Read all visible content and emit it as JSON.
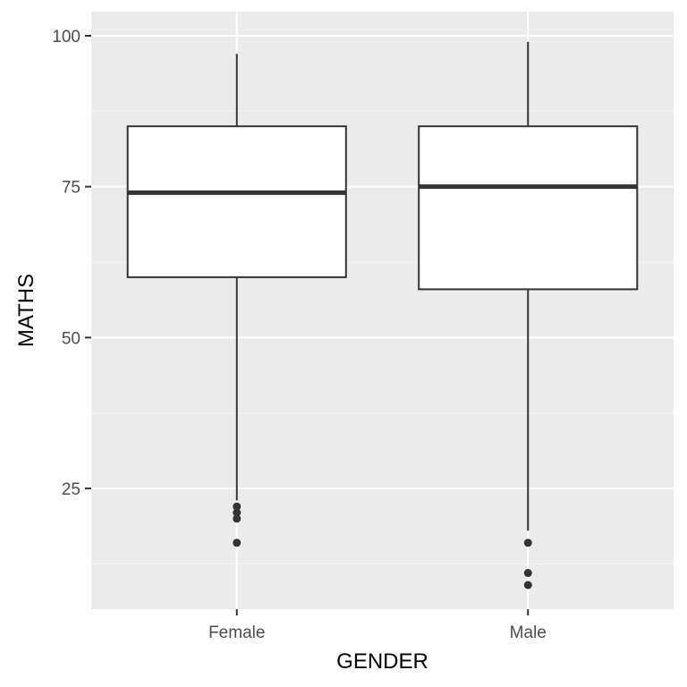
{
  "chart_data": {
    "type": "boxplot",
    "title": "",
    "xlabel": "GENDER",
    "ylabel": "MATHS",
    "categories": [
      "Female",
      "Male"
    ],
    "ylim": [
      5,
      104
    ],
    "y_ticks": [
      25,
      50,
      75,
      100
    ],
    "y_tick_labels": [
      "25",
      "50",
      "75",
      "100"
    ],
    "grid": true,
    "legend": "none",
    "boxes": [
      {
        "category": "Female",
        "whisker_low": 23,
        "q1": 60,
        "median": 74,
        "q3": 85,
        "whisker_high": 97,
        "outliers": [
          22,
          21,
          20,
          16
        ]
      },
      {
        "category": "Male",
        "whisker_low": 18,
        "q1": 58,
        "median": 75,
        "q3": 85,
        "whisker_high": 99,
        "outliers": [
          16,
          11,
          9
        ]
      }
    ],
    "colors": {
      "panel": "#ebebeb",
      "grid_major": "#ffffff",
      "grid_minor": "#f5f5f5",
      "box_fill": "#ffffff",
      "box_stroke": "#333333",
      "outlier": "#333333"
    }
  }
}
